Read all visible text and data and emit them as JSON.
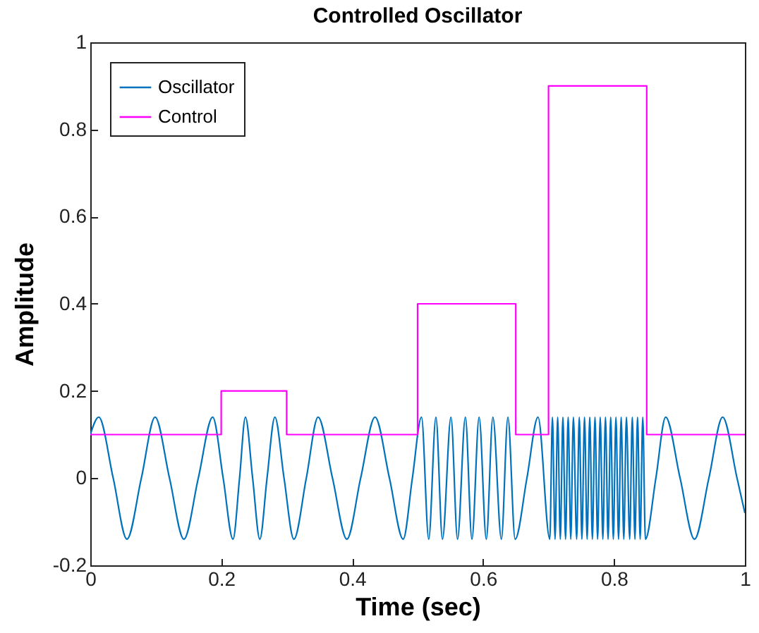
{
  "chart_data": {
    "type": "line",
    "title": "Controlled Oscillator",
    "xlabel": "Time (sec)",
    "ylabel": "Amplitude",
    "xlim": [
      0,
      1
    ],
    "xticks": [
      0,
      0.2,
      0.4,
      0.6,
      0.8,
      1
    ],
    "ylim": [
      -0.2,
      1
    ],
    "yticks": [
      -0.2,
      0,
      0.2,
      0.4,
      0.6,
      0.8,
      1
    ],
    "legend": "top left",
    "series": [
      {
        "name": "Oscillator",
        "color": "#0072bd",
        "x": [
          0,
          0.013,
          0.035,
          0.056,
          0.078,
          0.099,
          0.121,
          0.143,
          0.165,
          0.187,
          0.203,
          0.218,
          0.228,
          0.237,
          0.248,
          0.259,
          0.27,
          0.282,
          0.296,
          0.311,
          0.33,
          0.348,
          0.37,
          0.392,
          0.413,
          0.435,
          0.457,
          0.478,
          0.492,
          0.506,
          0.517,
          0.528,
          0.538,
          0.551,
          0.561,
          0.573,
          0.583,
          0.594,
          0.605,
          0.615,
          0.628,
          0.638,
          0.649,
          0.667,
          0.684,
          0.702,
          0.706,
          0.71,
          0.714,
          0.718,
          0.722,
          0.726,
          0.73,
          0.734,
          0.738,
          0.743,
          0.747,
          0.751,
          0.755,
          0.759,
          0.763,
          0.767,
          0.771,
          0.775,
          0.779,
          0.783,
          0.787,
          0.791,
          0.795,
          0.799,
          0.803,
          0.807,
          0.811,
          0.815,
          0.819,
          0.824,
          0.828,
          0.832,
          0.836,
          0.84,
          0.844,
          0.848,
          0.864,
          0.879,
          0.901,
          0.923,
          0.945,
          0.966,
          0.988,
          1
        ],
        "values": [
          0.1,
          0.14,
          0,
          -0.14,
          0,
          0.14,
          0,
          -0.14,
          0,
          0.14,
          0,
          -0.14,
          0,
          0.14,
          0,
          -0.14,
          0,
          0.14,
          0,
          -0.14,
          0,
          0.14,
          0,
          -0.14,
          0,
          0.14,
          0,
          -0.14,
          0,
          0.14,
          -0.14,
          0.14,
          -0.14,
          0.14,
          -0.14,
          0.14,
          -0.14,
          0.14,
          -0.14,
          0.14,
          -0.14,
          0.14,
          -0.14,
          0,
          0.14,
          -0.14,
          0.14,
          -0.14,
          0.14,
          -0.14,
          0.14,
          -0.14,
          0.14,
          -0.14,
          0.14,
          -0.14,
          0.14,
          -0.14,
          0.14,
          -0.14,
          0.14,
          -0.14,
          0.14,
          -0.14,
          0.14,
          -0.14,
          0.14,
          -0.14,
          0.14,
          -0.14,
          0.14,
          -0.14,
          0.14,
          -0.14,
          0.14,
          -0.14,
          0.14,
          -0.14,
          0.14,
          -0.14,
          0.14,
          -0.14,
          0,
          0.14,
          0,
          -0.14,
          0,
          0.14,
          0,
          -0.08
        ]
      },
      {
        "name": "Control",
        "type": "step",
        "color": "#ff00ff",
        "x": [
          0,
          0.2,
          0.3,
          0.5,
          0.65,
          0.7,
          0.85,
          1
        ],
        "values": [
          0.1,
          0.2,
          0.1,
          0.4,
          0.1,
          0.9,
          0.1,
          0.1
        ]
      }
    ]
  }
}
